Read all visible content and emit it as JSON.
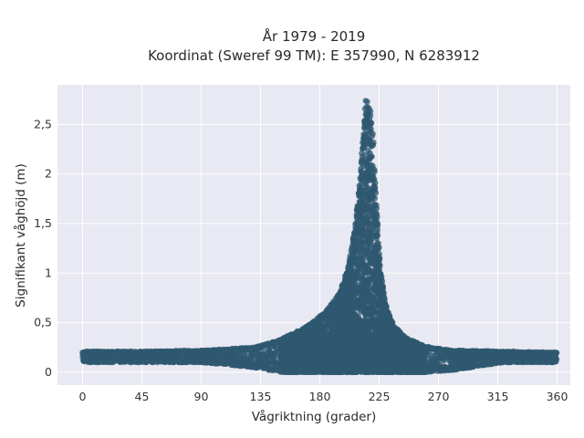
{
  "chart_data": {
    "type": "scatter",
    "title": "År 1979 - 2019",
    "subtitle": "Koordinat (Sweref 99 TM): E 357990, N 6283912",
    "xlabel": "Vågriktning (grader)",
    "ylabel": "Signifikant våghöjd (m)",
    "xlim": [
      -19,
      370
    ],
    "ylim": [
      -0.13,
      2.9
    ],
    "xticks": [
      0,
      45,
      90,
      135,
      180,
      225,
      270,
      315,
      360
    ],
    "xtick_labels": [
      "0",
      "45",
      "90",
      "135",
      "180",
      "225",
      "270",
      "315",
      "360"
    ],
    "yticks": [
      0,
      0.5,
      1,
      1.5,
      2,
      2.5
    ],
    "ytick_labels": [
      "0",
      "0,5",
      "1",
      "1,5",
      "2",
      "2,5"
    ],
    "grid": true,
    "marker_color": "#2f5870",
    "plot_background": "#e8e9f2",
    "envelope": {
      "description": "upper edge of point cloud (data units)",
      "x": [
        0,
        45,
        90,
        130,
        150,
        170,
        185,
        195,
        202,
        207,
        210,
        213,
        215,
        217,
        219,
        221,
        223,
        226,
        230,
        236,
        245,
        260,
        280,
        320,
        360
      ],
      "y_max": [
        0.21,
        0.21,
        0.22,
        0.25,
        0.33,
        0.46,
        0.62,
        0.8,
        1.1,
        1.5,
        1.9,
        2.45,
        2.79,
        2.72,
        2.6,
        2.3,
        1.7,
        1.05,
        0.68,
        0.48,
        0.35,
        0.26,
        0.22,
        0.21,
        0.2
      ],
      "y_min": [
        0.1,
        0.1,
        0.1,
        0.05,
        0.0,
        0.0,
        0.0,
        0.0,
        0.0,
        0.0,
        0.0,
        0.0,
        0.0,
        0.0,
        0.0,
        0.0,
        0.0,
        0.0,
        0.0,
        0.0,
        0.0,
        0.0,
        0.02,
        0.1,
        0.1
      ]
    }
  }
}
